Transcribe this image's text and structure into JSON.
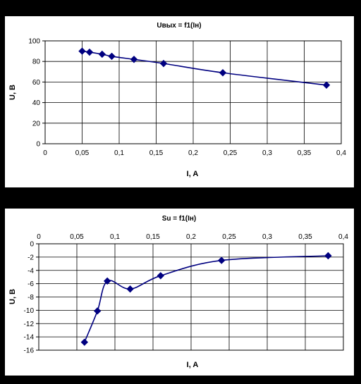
{
  "chart_data": [
    {
      "type": "line",
      "title": "Uвых = f1(Iн)",
      "xlabel": "I, A",
      "ylabel": "U, B",
      "xlim": [
        0,
        0.4
      ],
      "ylim": [
        0,
        100
      ],
      "x_ticks": [
        "0",
        "0,05",
        "0,1",
        "0,15",
        "0,2",
        "0,25",
        "0,3",
        "0,35",
        "0,4"
      ],
      "y_ticks": [
        "0",
        "20",
        "40",
        "60",
        "80",
        "100"
      ],
      "grid": true,
      "series": [
        {
          "x": [
            0.05,
            0.06,
            0.077,
            0.09,
            0.12,
            0.16,
            0.24,
            0.38
          ],
          "y": [
            90,
            89,
            87,
            85,
            82,
            78,
            69,
            57
          ],
          "color": "#000080",
          "marker": "diamond"
        }
      ]
    },
    {
      "type": "line",
      "title": "Su = f1(Iн)",
      "xlabel": "I, A",
      "ylabel": "U, B",
      "xlim": [
        0,
        0.4
      ],
      "ylim": [
        -16,
        0
      ],
      "x_axis_position": "top",
      "x_ticks": [
        "0",
        "0,05",
        "0,1",
        "0,15",
        "0,2",
        "0,25",
        "0,3",
        "0,35",
        "0,4"
      ],
      "y_ticks": [
        "0",
        "-2",
        "-4",
        "-6",
        "-8",
        "-10",
        "-12",
        "-14",
        "-16"
      ],
      "grid": true,
      "series": [
        {
          "x": [
            0.06,
            0.077,
            0.09,
            0.12,
            0.16,
            0.24,
            0.38
          ],
          "y": [
            -14.8,
            -10.1,
            -5.6,
            -6.8,
            -4.8,
            -2.5,
            -1.8
          ],
          "color": "#000080",
          "marker": "diamond"
        }
      ]
    }
  ]
}
